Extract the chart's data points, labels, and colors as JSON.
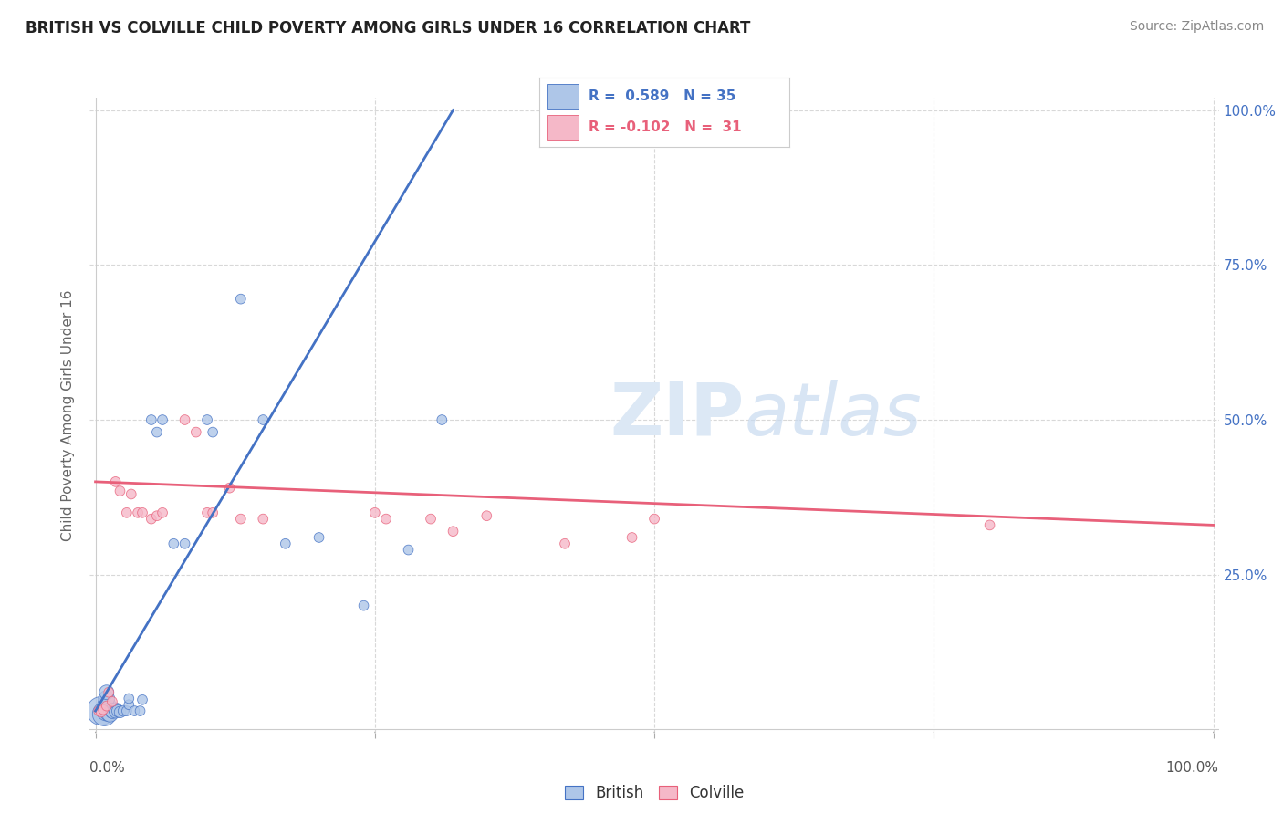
{
  "title": "BRITISH VS COLVILLE CHILD POVERTY AMONG GIRLS UNDER 16 CORRELATION CHART",
  "source": "Source: ZipAtlas.com",
  "ylabel": "Child Poverty Among Girls Under 16",
  "british_R": 0.589,
  "british_N": 35,
  "colville_R": -0.102,
  "colville_N": 31,
  "british_color": "#aec6e8",
  "colville_color": "#f5b8c8",
  "british_line_color": "#4472c4",
  "colville_line_color": "#e8607a",
  "background_color": "#ffffff",
  "grid_color": "#d8d8d8",
  "watermark_color": "#dce8f5",
  "british_x": [
    0.005,
    0.008,
    0.01,
    0.01,
    0.01,
    0.01,
    0.012,
    0.013,
    0.015,
    0.015,
    0.018,
    0.018,
    0.02,
    0.022,
    0.025,
    0.028,
    0.03,
    0.03,
    0.035,
    0.04,
    0.042,
    0.05,
    0.055,
    0.06,
    0.07,
    0.08,
    0.1,
    0.105,
    0.13,
    0.15,
    0.17,
    0.2,
    0.24,
    0.28,
    0.31
  ],
  "british_y": [
    0.03,
    0.025,
    0.03,
    0.04,
    0.05,
    0.06,
    0.028,
    0.025,
    0.03,
    0.028,
    0.032,
    0.028,
    0.03,
    0.028,
    0.03,
    0.03,
    0.04,
    0.05,
    0.03,
    0.03,
    0.048,
    0.5,
    0.48,
    0.5,
    0.3,
    0.3,
    0.5,
    0.48,
    0.695,
    0.5,
    0.3,
    0.31,
    0.2,
    0.29,
    0.5
  ],
  "british_sizes": [
    500,
    350,
    250,
    200,
    160,
    130,
    200,
    160,
    130,
    100,
    120,
    90,
    90,
    80,
    70,
    60,
    60,
    60,
    60,
    60,
    60,
    60,
    60,
    60,
    60,
    60,
    60,
    60,
    60,
    60,
    60,
    60,
    60,
    60,
    60
  ],
  "colville_x": [
    0.003,
    0.005,
    0.007,
    0.01,
    0.012,
    0.015,
    0.018,
    0.022,
    0.028,
    0.032,
    0.038,
    0.042,
    0.05,
    0.055,
    0.06,
    0.08,
    0.09,
    0.1,
    0.105,
    0.12,
    0.13,
    0.15,
    0.25,
    0.26,
    0.3,
    0.32,
    0.35,
    0.42,
    0.48,
    0.5,
    0.8
  ],
  "colville_y": [
    0.03,
    0.028,
    0.032,
    0.038,
    0.06,
    0.045,
    0.4,
    0.385,
    0.35,
    0.38,
    0.35,
    0.35,
    0.34,
    0.345,
    0.35,
    0.5,
    0.48,
    0.35,
    0.35,
    0.39,
    0.34,
    0.34,
    0.35,
    0.34,
    0.34,
    0.32,
    0.345,
    0.3,
    0.31,
    0.34,
    0.33
  ],
  "colville_sizes": [
    60,
    60,
    60,
    60,
    60,
    60,
    60,
    60,
    60,
    60,
    60,
    60,
    60,
    60,
    60,
    60,
    60,
    60,
    60,
    60,
    60,
    60,
    60,
    60,
    60,
    60,
    60,
    60,
    60,
    60,
    60
  ],
  "xlim": [
    -0.005,
    1.005
  ],
  "ylim": [
    -0.005,
    1.02
  ],
  "right_ytick_vals": [
    0.0,
    0.25,
    0.5,
    0.75,
    1.0
  ],
  "right_ytick_labels": [
    "",
    "25.0%",
    "50.0%",
    "75.0%",
    "100.0%"
  ],
  "xtick_left_label": "0.0%",
  "xtick_right_label": "100.0%"
}
